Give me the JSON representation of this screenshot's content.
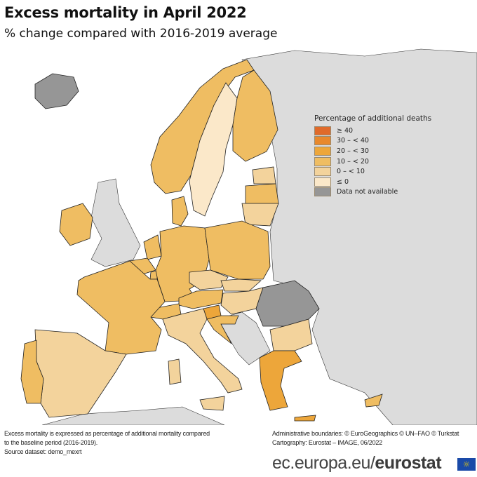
{
  "title": "Excess mortality in April 2022",
  "subtitle": "% change compared with 2016-2019 average",
  "legend": {
    "title": "Percentage of additional deaths",
    "items": [
      {
        "label": "≥ 40",
        "color": "#e06a2a"
      },
      {
        "label": "30 – < 40",
        "color": "#e8882c"
      },
      {
        "label": "20 – < 30",
        "color": "#eda63a"
      },
      {
        "label": "10 – < 20",
        "color": "#efbd62"
      },
      {
        "label": "0 – < 10",
        "color": "#f3d39c"
      },
      {
        "label": "≤ 0",
        "color": "#fbe8c9"
      },
      {
        "label": "Data not available",
        "color": "#969696"
      }
    ]
  },
  "map_fills": {
    "IS": 6,
    "NO": 3,
    "SE": 5,
    "FI": 3,
    "EE": 4,
    "LV": 3,
    "LT": 4,
    "DK": 3,
    "IE": 3,
    "NL": 3,
    "BE": 3,
    "LU": 3,
    "DE": 3,
    "PL": 3,
    "CZ": 4,
    "SK": 4,
    "AT": 3,
    "HU": 4,
    "SI": 2,
    "HR": 3,
    "CH": 3,
    "FR": 3,
    "ES": 4,
    "PT": 3,
    "IT": 4,
    "MT": 3,
    "RO": 6,
    "BG": 4,
    "EL": 2,
    "CY": 3
  },
  "colors": {
    "sea": "#ffffff",
    "other_land": "#dcdcdc"
  },
  "footer": {
    "note_line1": "Excess mortality is expressed as percentage of additional mortality compared",
    "note_line2": "to the baseline period (2016-2019).",
    "source": "Source dataset: demo_mexrt",
    "boundaries": "Administrative boundaries: © EuroGeographics © UN–FAO © Turkstat",
    "cartography": "Cartography: Eurostat – IMAGE, 06/2022",
    "brand_prefix": "ec.europa.eu/",
    "brand_name": "eurostat",
    "flag_stars": "☼"
  }
}
